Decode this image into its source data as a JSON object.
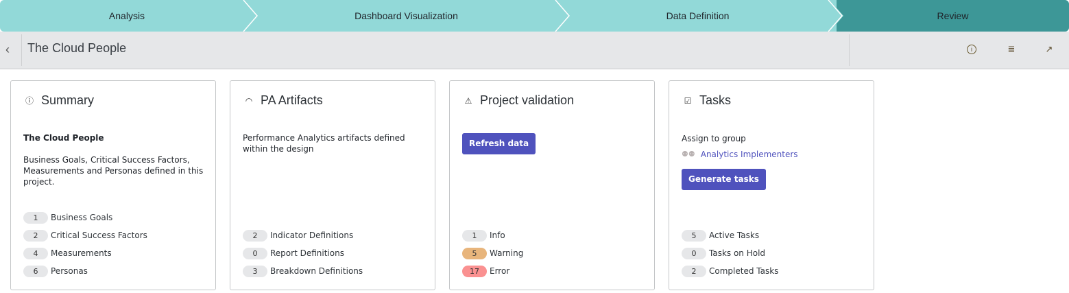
{
  "stepper": {
    "steps": [
      {
        "label": "Analysis"
      },
      {
        "label": "Dashboard Visualization"
      },
      {
        "label": "Data Definition"
      },
      {
        "label": "Review",
        "active": true
      }
    ]
  },
  "header": {
    "title": "The Cloud People",
    "icons": [
      "chevron-left-icon",
      "info-icon",
      "notes-icon",
      "export-icon"
    ]
  },
  "summary": {
    "title": "Summary",
    "project_name": "The Cloud People",
    "description": "Business Goals, Critical Success Factors, Measurements and Personas defined in this project.",
    "items": [
      {
        "count": "1",
        "label": "Business Goals"
      },
      {
        "count": "2",
        "label": "Critical Success Factors"
      },
      {
        "count": "4",
        "label": "Measurements"
      },
      {
        "count": "6",
        "label": "Personas"
      }
    ]
  },
  "artifacts": {
    "title": "PA Artifacts",
    "description": "Performance Analytics artifacts defined within the design",
    "items": [
      {
        "count": "2",
        "label": "Indicator Definitions"
      },
      {
        "count": "0",
        "label": "Report Definitions"
      },
      {
        "count": "3",
        "label": "Breakdown Definitions"
      }
    ]
  },
  "validation": {
    "title": "Project validation",
    "refresh_label": "Refresh data",
    "items": [
      {
        "count": "1",
        "label": "Info",
        "color": "#e6e7e9"
      },
      {
        "count": "5",
        "label": "Warning",
        "color": "#e8b57c"
      },
      {
        "count": "17",
        "label": "Error",
        "color": "#fa9191"
      }
    ]
  },
  "tasks": {
    "title": "Tasks",
    "assign_label": "Assign to group",
    "group": "Analytics Implementers",
    "generate_label": "Generate tasks",
    "items": [
      {
        "count": "5",
        "label": "Active Tasks"
      },
      {
        "count": "0",
        "label": "Tasks on Hold"
      },
      {
        "count": "2",
        "label": "Completed Tasks"
      }
    ]
  },
  "colors": {
    "step": "#92d9d8",
    "step_active": "#3d9797",
    "primary": "#4f52bd"
  }
}
